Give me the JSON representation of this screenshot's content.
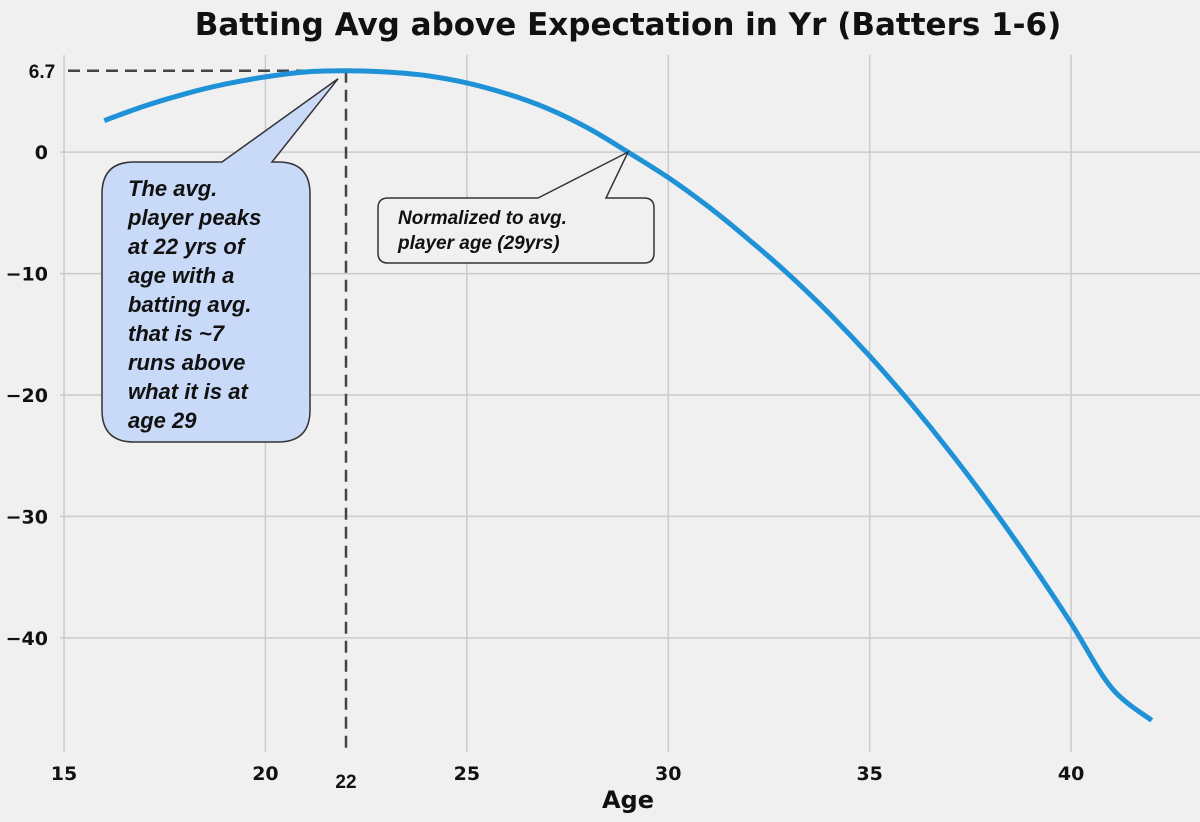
{
  "chart_data": {
    "type": "line",
    "title": "Batting Avg above Expectation in Yr (Batters 1-6)",
    "xlabel": "Age",
    "ylabel": "",
    "xlim": [
      14.9,
      43.2
    ],
    "ylim": [
      -49.4,
      8.0
    ],
    "xticks": [
      15,
      20,
      25,
      30,
      35,
      40
    ],
    "yticks": [
      0,
      -10,
      -20,
      -30,
      -40
    ],
    "xtick_labels": [
      "15",
      "20",
      "25",
      "30",
      "35",
      "40"
    ],
    "ytick_labels": [
      "0",
      "−10",
      "−20",
      "−30",
      "−40"
    ],
    "grid": true,
    "series": [
      {
        "name": "Batting Avg above Expectation",
        "color": "#1f92d7",
        "x": [
          16,
          17,
          18,
          19,
          20,
          21,
          22,
          23,
          24,
          25,
          26,
          27,
          28,
          29,
          30,
          31,
          32,
          33,
          34,
          35,
          36,
          37,
          38,
          39,
          40,
          41,
          42
        ],
        "y": [
          2.6,
          3.8,
          4.8,
          5.6,
          6.2,
          6.6,
          6.7,
          6.6,
          6.3,
          5.7,
          4.8,
          3.6,
          2.0,
          0.0,
          -2.1,
          -4.5,
          -7.2,
          -10.1,
          -13.3,
          -16.8,
          -20.6,
          -24.7,
          -29.1,
          -33.8,
          -38.8,
          -44.1,
          -46.8
        ]
      }
    ],
    "reference_lines": {
      "peak_value": 6.7,
      "peak_value_label": "6.7",
      "peak_age": 22,
      "peak_age_label": "22"
    },
    "annotations": [
      {
        "id": "peak",
        "text_lines": [
          "The avg.",
          "player peaks",
          "at 22 yrs of",
          "age with a",
          "batting avg.",
          "that is ~7",
          "runs above",
          "what it is at",
          "age 29"
        ],
        "points_to": [
          22,
          6.7
        ],
        "fill": "#c9daf8"
      },
      {
        "id": "normalized",
        "text_lines": [
          "Normalized to avg.",
          "player age (29yrs)"
        ],
        "points_to": [
          29,
          0
        ],
        "fill": "#f0f0f0"
      }
    ]
  }
}
